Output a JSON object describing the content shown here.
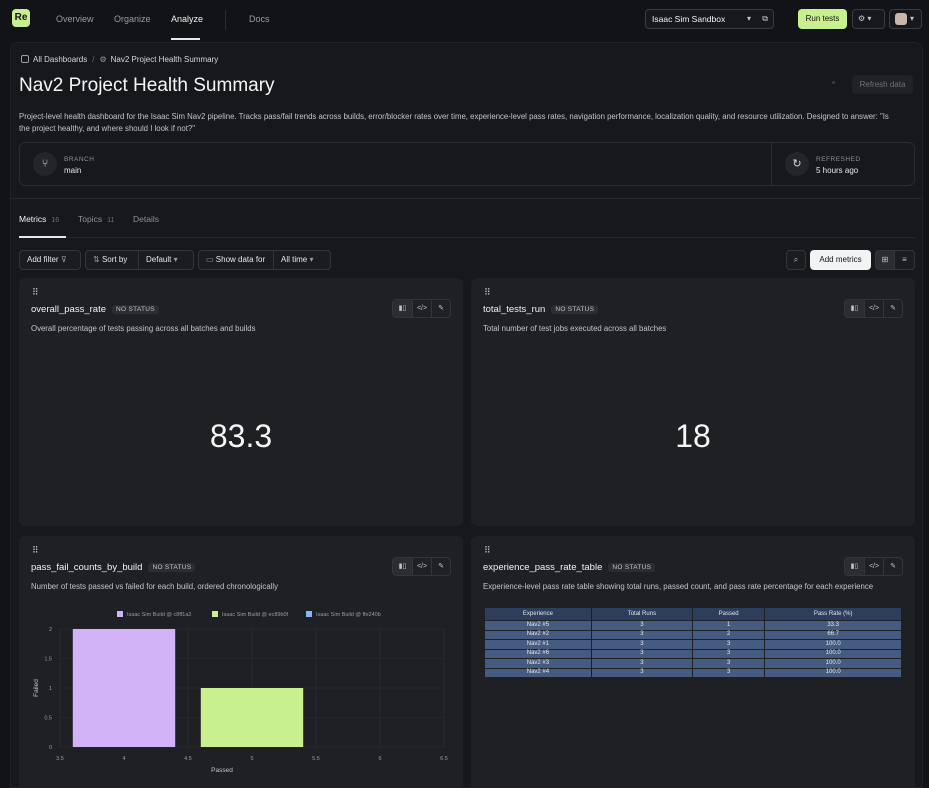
{
  "nav": {
    "logo": "Re",
    "links": [
      "Overview",
      "Organize",
      "Analyze",
      "Docs"
    ],
    "active": "Analyze",
    "project": "Isaac Sim Sandbox",
    "run_button": "Run tests"
  },
  "breadcrumb": {
    "root": "All Dashboards",
    "current": "Nav2 Project Health Summary"
  },
  "page": {
    "title": "Nav2 Project Health Summary",
    "refresh_button": "Refresh data",
    "description": "Project-level health dashboard for the Isaac Sim Nav2 pipeline. Tracks pass/fail trends across builds, error/blocker rates over time, experience-level pass rates, navigation performance, localization quality, and resource utilization. Designed to answer: \"Is the project healthy, and where should I look if not?\""
  },
  "info": {
    "branch_label": "BRANCH",
    "branch_value": "main",
    "refreshed_label": "REFRESHED",
    "refreshed_value": "5 hours ago"
  },
  "tabs": [
    {
      "label": "Metrics",
      "count": "16"
    },
    {
      "label": "Topics",
      "count": "11"
    },
    {
      "label": "Details",
      "count": ""
    }
  ],
  "toolbar": {
    "add_filter": "Add filter",
    "sort_by": "Sort by",
    "sort_value": "Default",
    "show_data_for": "Show data for",
    "time_value": "All time",
    "add_metrics": "Add metrics"
  },
  "cards": {
    "pass_rate": {
      "title": "overall_pass_rate",
      "status": "NO STATUS",
      "description": "Overall percentage of tests passing across all batches and builds",
      "value": "83.3"
    },
    "tests_run": {
      "title": "total_tests_run",
      "status": "NO STATUS",
      "description": "Total number of test jobs executed across all batches",
      "value": "18"
    },
    "pass_fail": {
      "title": "pass_fail_counts_by_build",
      "status": "NO STATUS",
      "description": "Number of tests passed vs failed for each build, ordered chronologically"
    },
    "exp_table": {
      "title": "experience_pass_rate_table",
      "status": "NO STATUS",
      "description": "Experience-level pass rate table showing total runs, passed count, and pass rate percentage for each experience",
      "columns": [
        "Experience",
        "Total Runs",
        "Passed",
        "Pass Rate (%)"
      ],
      "rows": [
        [
          "Nav2 #5",
          "3",
          "1",
          "33.3"
        ],
        [
          "Nav2 #2",
          "3",
          "2",
          "66.7"
        ],
        [
          "Nav2 #1",
          "3",
          "3",
          "100.0"
        ],
        [
          "Nav2 #6",
          "3",
          "3",
          "100.0"
        ],
        [
          "Nav2 #3",
          "3",
          "3",
          "100.0"
        ],
        [
          "Nav2 #4",
          "3",
          "3",
          "100.0"
        ]
      ]
    }
  },
  "chart_data": {
    "type": "bar",
    "xlabel": "Passed",
    "ylabel": "Failed",
    "xlim": [
      3.5,
      6.5
    ],
    "ylim": [
      0,
      2
    ],
    "x_ticks": [
      "3.5",
      "4",
      "4.5",
      "5",
      "5.5",
      "6",
      "6.5"
    ],
    "y_ticks": [
      "0",
      "0.5",
      "1",
      "1.5",
      "2"
    ],
    "legend_position": "top",
    "series": [
      {
        "name": "Isaac Sim Build @ c8ff1a2",
        "x": 4,
        "y": 2,
        "color": "#d3b3f7"
      },
      {
        "name": "Isaac Sim Build @ ec89b0f",
        "x": 5,
        "y": 1,
        "color": "#c9f08f"
      },
      {
        "name": "Isaac Sim Build @ ffe240b",
        "x": 6,
        "y": 0,
        "color": "#8ab4f8"
      }
    ]
  },
  "colors": {
    "accent": "#c9f08f",
    "background": "#121316",
    "card": "#1f2024"
  }
}
